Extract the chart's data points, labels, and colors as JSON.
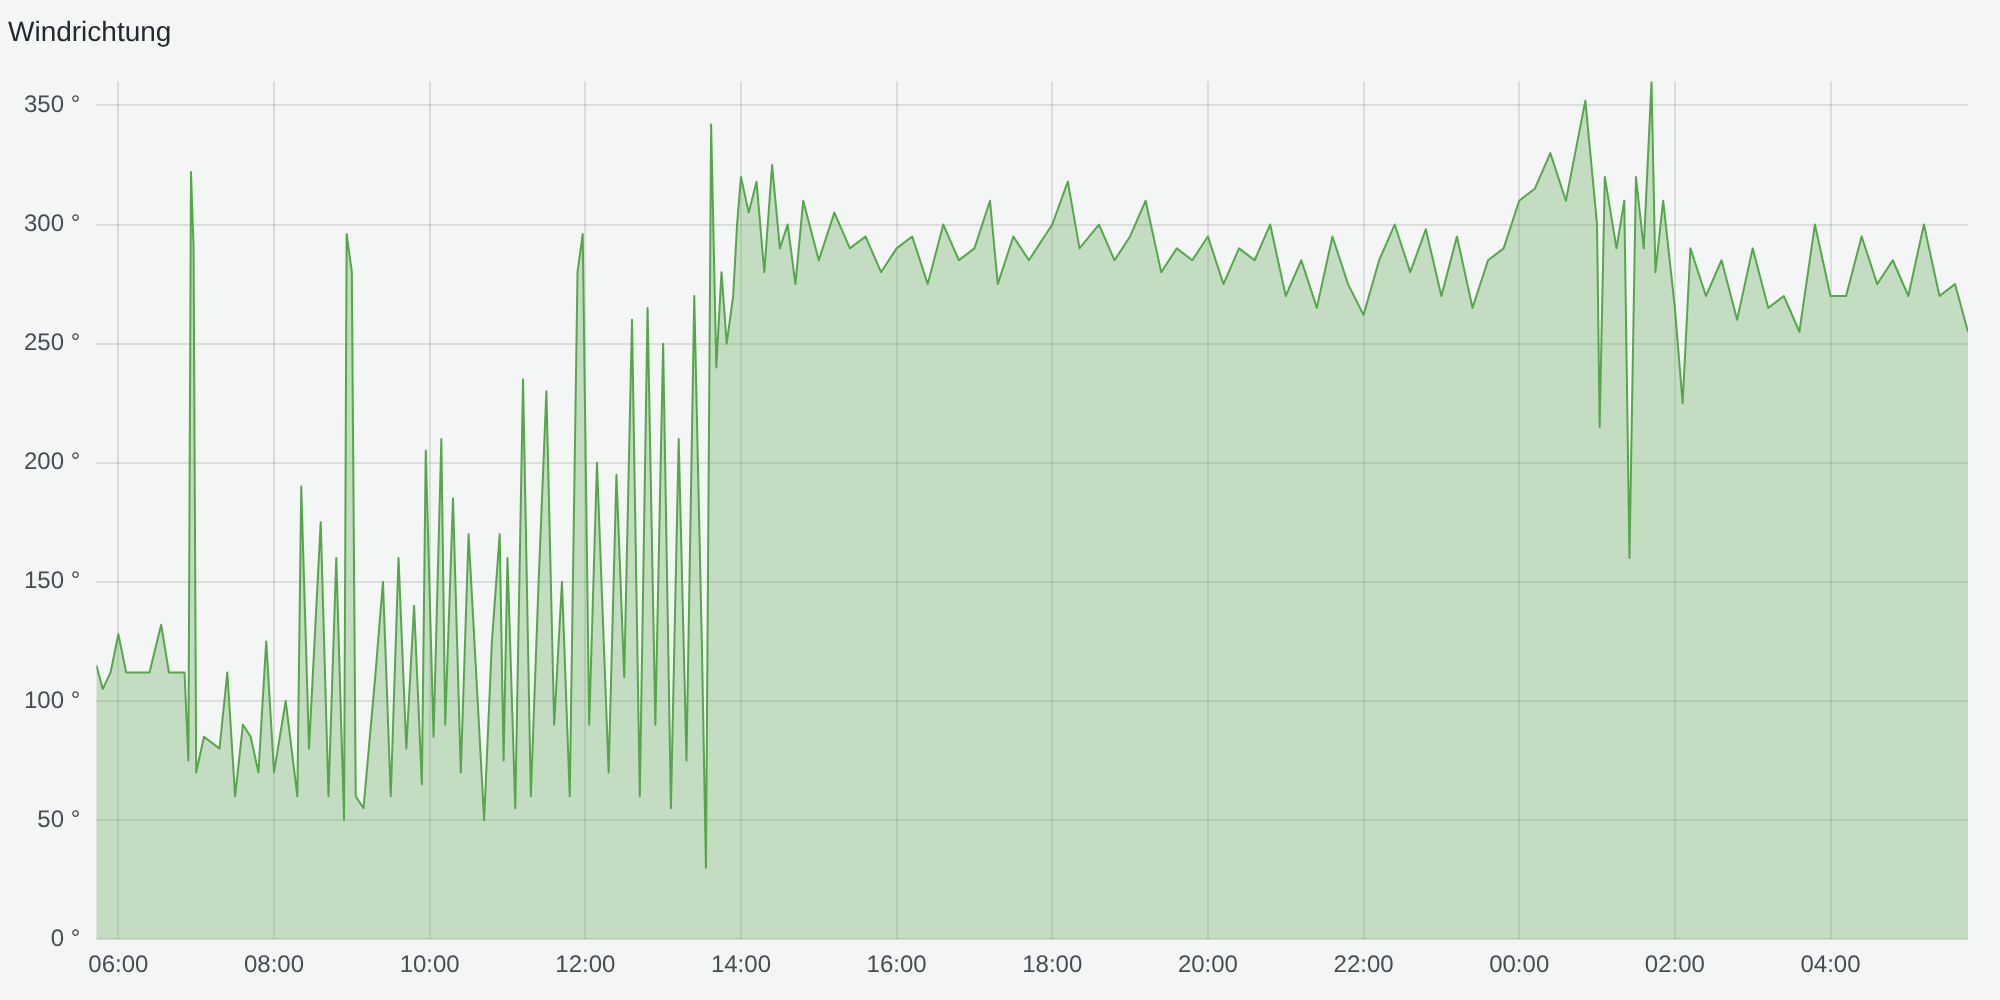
{
  "chart_data": {
    "type": "area",
    "title": "Windrichtung",
    "legend": false,
    "grid": true,
    "marker": "none",
    "line_style": "solid",
    "xlim": [
      "--05-01T05:43",
      "--05-02T05:46"
    ],
    "xticks": [
      {
        "value": "--05-01T06:00",
        "label": "06:00"
      },
      {
        "value": "--05-01T08:00",
        "label": "08:00"
      },
      {
        "value": "--05-01T10:00",
        "label": "10:00"
      },
      {
        "value": "--05-01T12:00",
        "label": "12:00"
      },
      {
        "value": "--05-01T14:00",
        "label": "14:00"
      },
      {
        "value": "--05-01T16:00",
        "label": "16:00"
      },
      {
        "value": "--05-01T18:00",
        "label": "18:00"
      },
      {
        "value": "--05-01T20:00",
        "label": "20:00"
      },
      {
        "value": "--05-01T22:00",
        "label": "22:00"
      },
      {
        "value": "--05-02T00:00",
        "label": "00:00"
      },
      {
        "value": "--05-02T02:00",
        "label": "02:00"
      },
      {
        "value": "--05-02T04:00",
        "label": "04:00"
      }
    ],
    "ylim": [
      0,
      360
    ],
    "yticks": [
      {
        "value": 0,
        "label": "0 °"
      },
      {
        "value": 50,
        "label": "50 °"
      },
      {
        "value": 100,
        "label": "100 °"
      },
      {
        "value": 150,
        "label": "150 °"
      },
      {
        "value": 200,
        "label": "200 °"
      },
      {
        "value": 250,
        "label": "250 °"
      },
      {
        "value": 300,
        "label": "300 °"
      },
      {
        "value": 350,
        "label": "350 °"
      }
    ],
    "x": [
      "--05-01T05:43",
      "--05-01T05:48",
      "--05-01T05:54",
      "--05-01T06:00",
      "--05-01T06:06",
      "--05-01T06:12",
      "--05-01T06:24",
      "--05-01T06:33",
      "--05-01T06:39",
      "--05-01T06:51",
      "--05-01T06:54",
      "--05-01T06:56",
      "--05-01T06:58",
      "--05-01T07:00",
      "--05-01T07:06",
      "--05-01T07:18",
      "--05-01T07:24",
      "--05-01T07:30",
      "--05-01T07:36",
      "--05-01T07:42",
      "--05-01T07:48",
      "--05-01T07:54",
      "--05-01T08:00",
      "--05-01T08:09",
      "--05-01T08:18",
      "--05-01T08:21",
      "--05-01T08:27",
      "--05-01T08:36",
      "--05-01T08:42",
      "--05-01T08:48",
      "--05-01T08:54",
      "--05-01T08:56",
      "--05-01T09:00",
      "--05-01T09:03",
      "--05-01T09:09",
      "--05-01T09:18",
      "--05-01T09:24",
      "--05-01T09:30",
      "--05-01T09:36",
      "--05-01T09:42",
      "--05-01T09:48",
      "--05-01T09:54",
      "--05-01T09:57",
      "--05-01T10:03",
      "--05-01T10:09",
      "--05-01T10:12",
      "--05-01T10:18",
      "--05-01T10:24",
      "--05-01T10:30",
      "--05-01T10:36",
      "--05-01T10:42",
      "--05-01T10:48",
      "--05-01T10:54",
      "--05-01T10:57",
      "--05-01T11:00",
      "--05-01T11:06",
      "--05-01T11:12",
      "--05-01T11:18",
      "--05-01T11:24",
      "--05-01T11:30",
      "--05-01T11:36",
      "--05-01T11:42",
      "--05-01T11:48",
      "--05-01T11:54",
      "--05-01T11:58",
      "--05-01T12:03",
      "--05-01T12:09",
      "--05-01T12:18",
      "--05-01T12:24",
      "--05-01T12:30",
      "--05-01T12:36",
      "--05-01T12:42",
      "--05-01T12:48",
      "--05-01T12:54",
      "--05-01T13:00",
      "--05-01T13:06",
      "--05-01T13:12",
      "--05-01T13:18",
      "--05-01T13:24",
      "--05-01T13:30",
      "--05-01T13:33",
      "--05-01T13:37",
      "--05-01T13:41",
      "--05-01T13:45",
      "--05-01T13:49",
      "--05-01T13:54",
      "--05-01T13:57",
      "--05-01T14:00",
      "--05-01T14:06",
      "--05-01T14:12",
      "--05-01T14:18",
      "--05-01T14:24",
      "--05-01T14:30",
      "--05-01T14:36",
      "--05-01T14:42",
      "--05-01T14:48",
      "--05-01T15:00",
      "--05-01T15:12",
      "--05-01T15:24",
      "--05-01T15:36",
      "--05-01T15:48",
      "--05-01T16:00",
      "--05-01T16:12",
      "--05-01T16:24",
      "--05-01T16:36",
      "--05-01T16:48",
      "--05-01T17:00",
      "--05-01T17:12",
      "--05-01T17:18",
      "--05-01T17:30",
      "--05-01T17:42",
      "--05-01T18:00",
      "--05-01T18:12",
      "--05-01T18:21",
      "--05-01T18:36",
      "--05-01T18:48",
      "--05-01T19:00",
      "--05-01T19:12",
      "--05-01T19:24",
      "--05-01T19:36",
      "--05-01T19:48",
      "--05-01T20:00",
      "--05-01T20:12",
      "--05-01T20:24",
      "--05-01T20:36",
      "--05-01T20:48",
      "--05-01T21:00",
      "--05-01T21:12",
      "--05-01T21:24",
      "--05-01T21:36",
      "--05-01T21:48",
      "--05-01T22:00",
      "--05-01T22:12",
      "--05-01T22:24",
      "--05-01T22:36",
      "--05-01T22:48",
      "--05-01T23:00",
      "--05-01T23:12",
      "--05-01T23:24",
      "--05-01T23:36",
      "--05-01T23:48",
      "--05-02T00:00",
      "--05-02T00:12",
      "--05-02T00:24",
      "--05-02T00:36",
      "--05-02T00:51",
      "--05-02T01:00",
      "--05-02T01:02",
      "--05-02T01:06",
      "--05-02T01:15",
      "--05-02T01:21",
      "--05-02T01:25",
      "--05-02T01:30",
      "--05-02T01:36",
      "--05-02T01:42",
      "--05-02T01:45",
      "--05-02T01:51",
      "--05-02T02:00",
      "--05-02T02:06",
      "--05-02T02:12",
      "--05-02T02:24",
      "--05-02T02:36",
      "--05-02T02:48",
      "--05-02T03:00",
      "--05-02T03:12",
      "--05-02T03:24",
      "--05-02T03:36",
      "--05-02T03:48",
      "--05-02T04:00",
      "--05-02T04:12",
      "--05-02T04:24",
      "--05-02T04:36",
      "--05-02T04:48",
      "--05-02T05:00",
      "--05-02T05:12",
      "--05-02T05:24",
      "--05-02T05:36",
      "--05-02T05:46"
    ],
    "series": [
      {
        "color": "#56a64b",
        "values": [
          115,
          105,
          112,
          128,
          112,
          112,
          112,
          132,
          112,
          112,
          75,
          322,
          290,
          70,
          85,
          80,
          112,
          60,
          90,
          85,
          70,
          125,
          70,
          100,
          60,
          190,
          80,
          175,
          60,
          160,
          50,
          296,
          280,
          60,
          55,
          110,
          150,
          60,
          160,
          80,
          140,
          65,
          205,
          85,
          210,
          90,
          185,
          70,
          170,
          110,
          50,
          125,
          170,
          75,
          160,
          55,
          235,
          60,
          150,
          230,
          90,
          150,
          60,
          280,
          296,
          90,
          200,
          70,
          195,
          110,
          260,
          60,
          265,
          90,
          250,
          55,
          210,
          75,
          270,
          120,
          30,
          342,
          240,
          280,
          250,
          270,
          300,
          320,
          305,
          318,
          280,
          325,
          290,
          300,
          275,
          310,
          285,
          305,
          290,
          295,
          280,
          290,
          295,
          275,
          300,
          285,
          290,
          310,
          275,
          295,
          285,
          300,
          318,
          290,
          300,
          285,
          295,
          310,
          280,
          290,
          285,
          295,
          275,
          290,
          285,
          300,
          270,
          285,
          265,
          295,
          275,
          262,
          285,
          300,
          280,
          298,
          270,
          295,
          265,
          285,
          290,
          310,
          315,
          330,
          310,
          352,
          300,
          215,
          320,
          290,
          310,
          160,
          320,
          290,
          360,
          280,
          310,
          265,
          225,
          290,
          270,
          285,
          260,
          290,
          265,
          270,
          255,
          300,
          270,
          270,
          295,
          275,
          285,
          270,
          300,
          270,
          275,
          255
        ]
      }
    ]
  }
}
